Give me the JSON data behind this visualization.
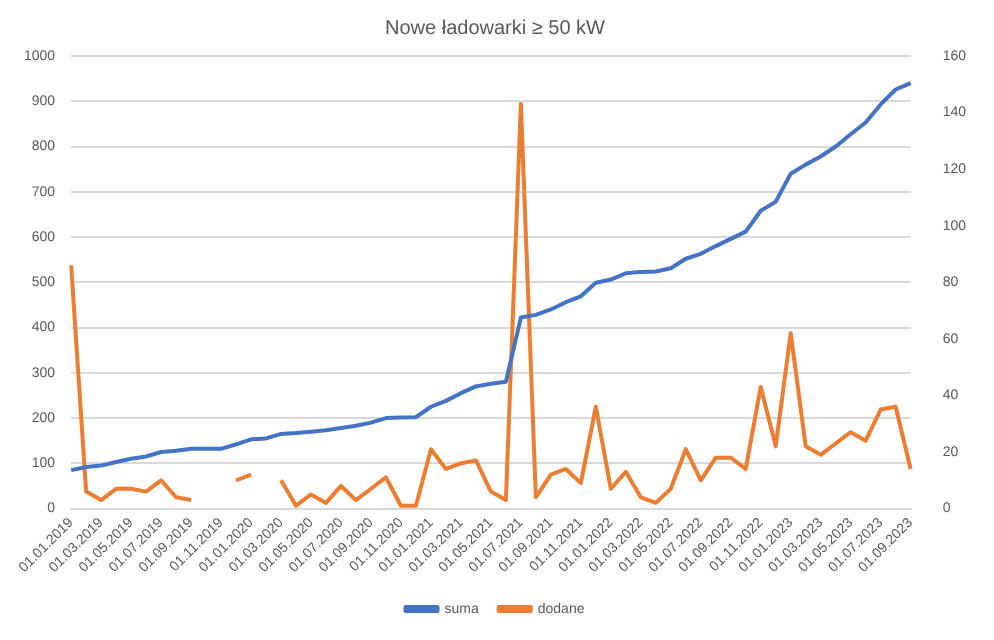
{
  "chart_data": {
    "type": "line",
    "title": "Nowe ładowarki ≥ 50 kW",
    "categories": [
      "01.01.2019",
      null,
      "01.03.2019",
      null,
      "01.05.2019",
      null,
      "01.07.2019",
      null,
      "01.09.2019",
      null,
      "01.11.2019",
      null,
      "01.01.2020",
      null,
      "01.03.2020",
      null,
      "01.05.2020",
      null,
      "01.07.2020",
      null,
      "01.09.2020",
      null,
      "01.11.2020",
      null,
      "01.01.2021",
      null,
      "01.03.2021",
      null,
      "01.05.2021",
      null,
      "01.07.2021",
      null,
      "01.09.2021",
      null,
      "01.11.2021",
      null,
      "01.01.2022",
      null,
      "01.03.2022",
      null,
      "01.05.2022",
      null,
      "01.07.2022",
      null,
      "01.09.2022",
      null,
      "01.11.2022",
      null,
      "01.01.2023",
      null,
      "01.03.2023",
      null,
      "01.05.2023",
      null,
      "01.07.2023",
      null,
      "01.09.2023"
    ],
    "series": [
      {
        "name": "suma",
        "color": "#4472c4",
        "values": [
          85,
          92,
          95,
          103,
          110,
          115,
          125,
          128,
          132,
          132,
          132,
          142,
          153,
          155,
          165,
          167,
          170,
          173,
          178,
          183,
          190,
          200,
          201,
          202,
          225,
          238,
          255,
          270,
          276,
          280,
          422,
          428,
          440,
          456,
          469,
          499,
          506,
          520,
          523,
          524,
          531,
          552,
          563,
          580,
          596,
          612,
          658,
          678,
          740,
          760,
          778,
          800,
          827,
          853,
          893,
          926,
          940
        ]
      },
      {
        "name": "dodane",
        "color": "#ed7d31",
        "axis": "y2",
        "values": [
          86,
          6,
          3,
          7,
          7,
          6,
          10,
          4,
          3,
          null,
          null,
          10,
          12,
          null,
          10,
          1,
          5,
          2,
          8,
          3,
          7,
          11,
          1,
          1,
          21,
          14,
          16,
          17,
          6,
          3,
          143,
          4,
          12,
          14,
          9,
          36,
          7,
          13,
          4,
          2,
          7,
          21,
          10,
          18,
          18,
          14,
          43,
          22,
          62,
          22,
          19,
          23,
          27,
          24,
          35,
          36,
          14
        ]
      }
    ],
    "ylim": [
      0,
      1000
    ],
    "yticks": [
      0,
      100,
      200,
      300,
      400,
      500,
      600,
      700,
      800,
      900,
      1000
    ],
    "y2lim": [
      0,
      160
    ],
    "y2ticks": [
      0,
      20,
      40,
      60,
      80,
      100,
      120,
      140,
      160
    ],
    "grid": "y",
    "legend": "bottom",
    "marker": "none",
    "line_style": "solid"
  }
}
